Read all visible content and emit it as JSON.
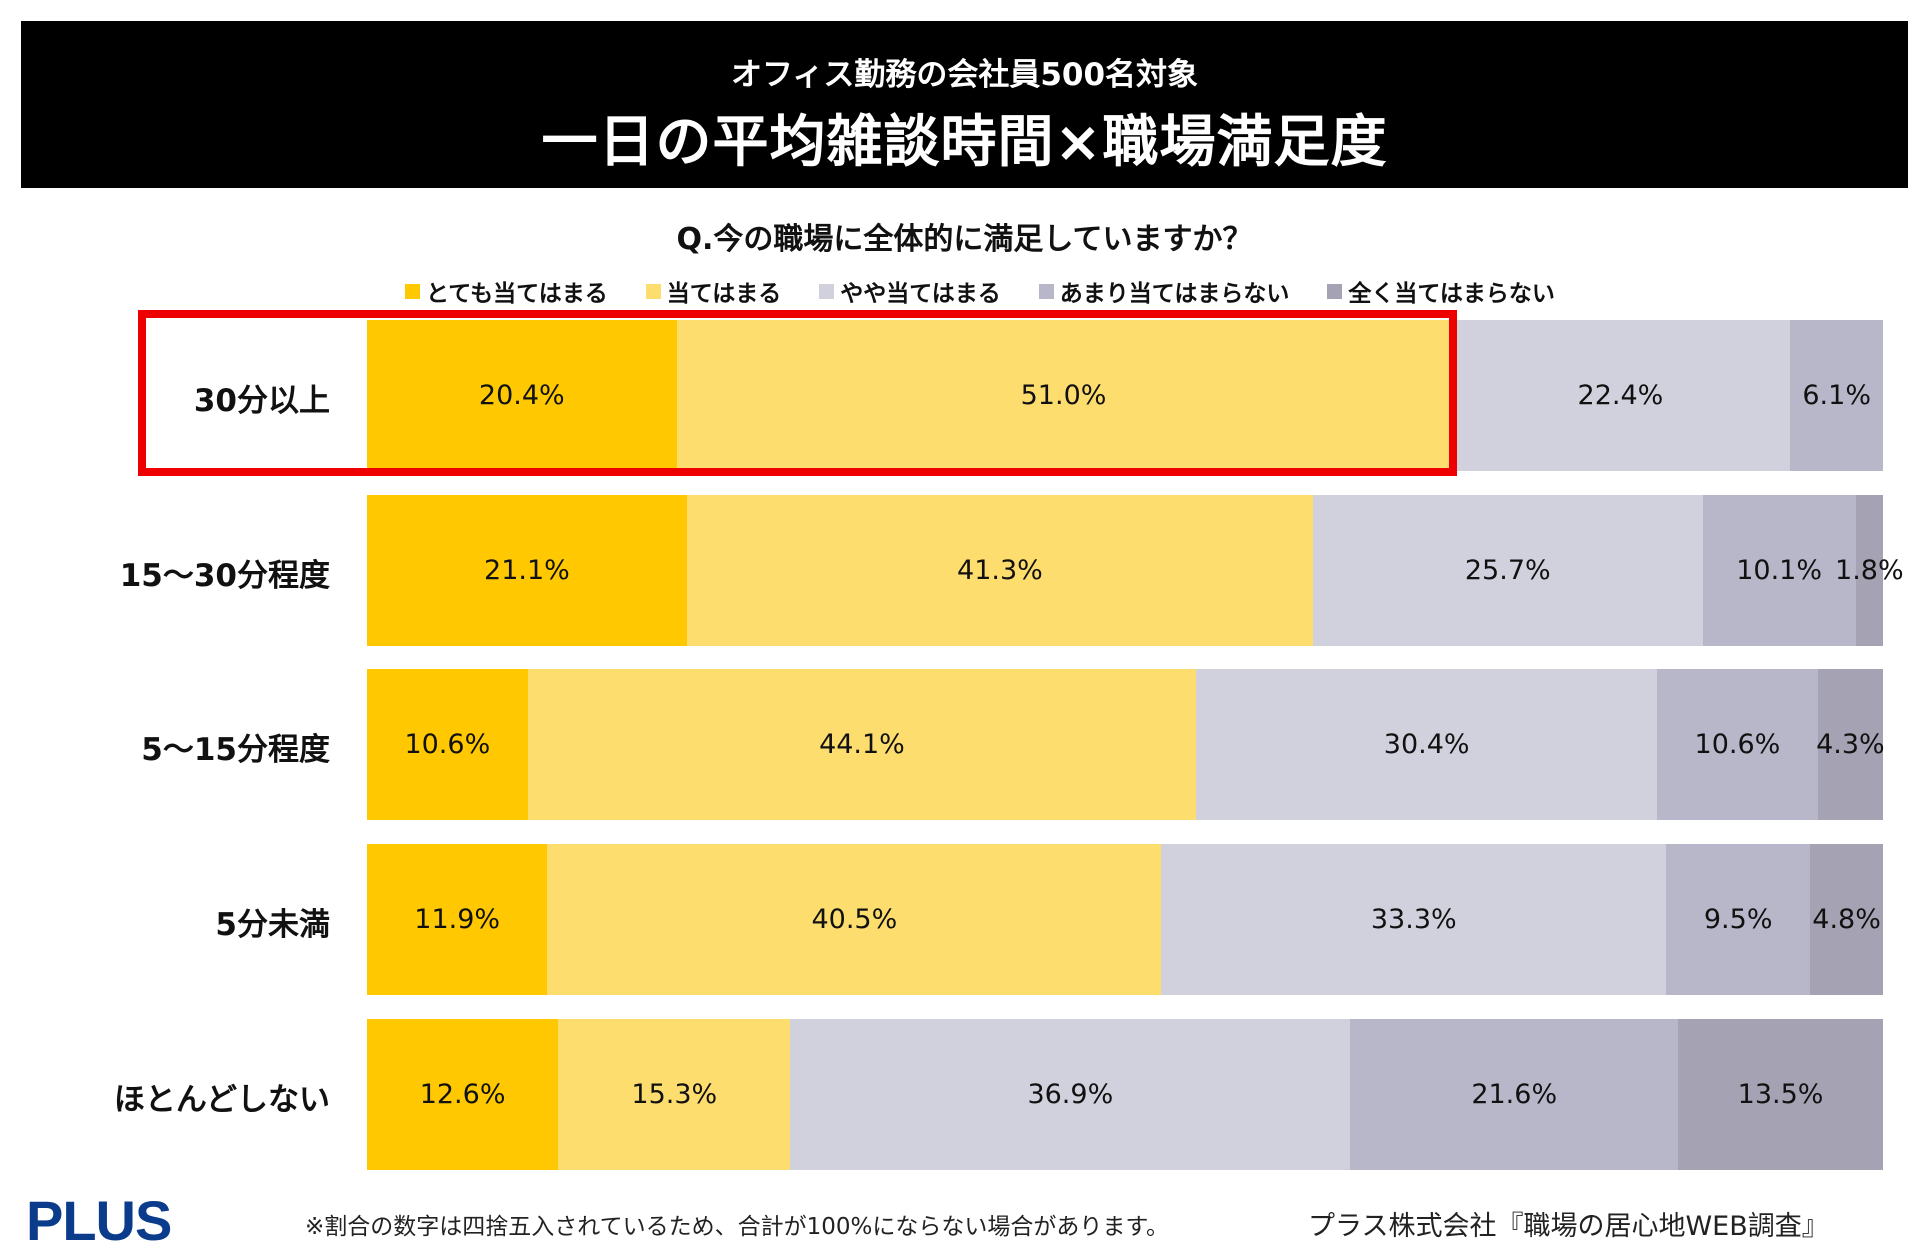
{
  "header": {
    "subtitle": "オフィス勤務の会社員500名対象",
    "title": "一日の平均雑談時間×職場満足度"
  },
  "chart_data": {
    "type": "bar",
    "orientation": "horizontal-stacked-100",
    "title": "Q.今の職場に全体的に満足していますか？",
    "categories": [
      "30分以上",
      "15〜30分程度",
      "5〜15分程度",
      "5分未満",
      "ほとんどしない"
    ],
    "series": [
      {
        "name": "とても当てはまる",
        "color": "#FFC800",
        "values": [
          20.4,
          21.1,
          10.6,
          11.9,
          12.6
        ]
      },
      {
        "name": "当てはまる",
        "color": "#FDDD6E",
        "values": [
          51.0,
          41.3,
          44.1,
          40.5,
          15.3
        ]
      },
      {
        "name": "やや当てはまる",
        "color": "#D1D0DD",
        "values": [
          22.4,
          25.7,
          30.4,
          33.3,
          36.9
        ]
      },
      {
        "name": "あまり当てはまらない",
        "color": "#B8B6C9",
        "values": [
          6.1,
          10.1,
          10.6,
          9.5,
          21.6
        ]
      },
      {
        "name": "全く当てはまらない",
        "color": "#A5A3B3",
        "values": [
          0,
          1.8,
          4.3,
          4.8,
          13.5
        ]
      }
    ],
    "legend_position": "top",
    "highlight": {
      "category": "30分以上",
      "series": [
        "とても当てはまる",
        "当てはまる"
      ],
      "color": "#EE0000"
    }
  },
  "footer": {
    "logo": "PLUS",
    "note": "※割合の数字は四捨五入されているため、合計が100%にならない場合があります。",
    "source": "プラス株式会社『職場の居心地WEB調査』"
  }
}
